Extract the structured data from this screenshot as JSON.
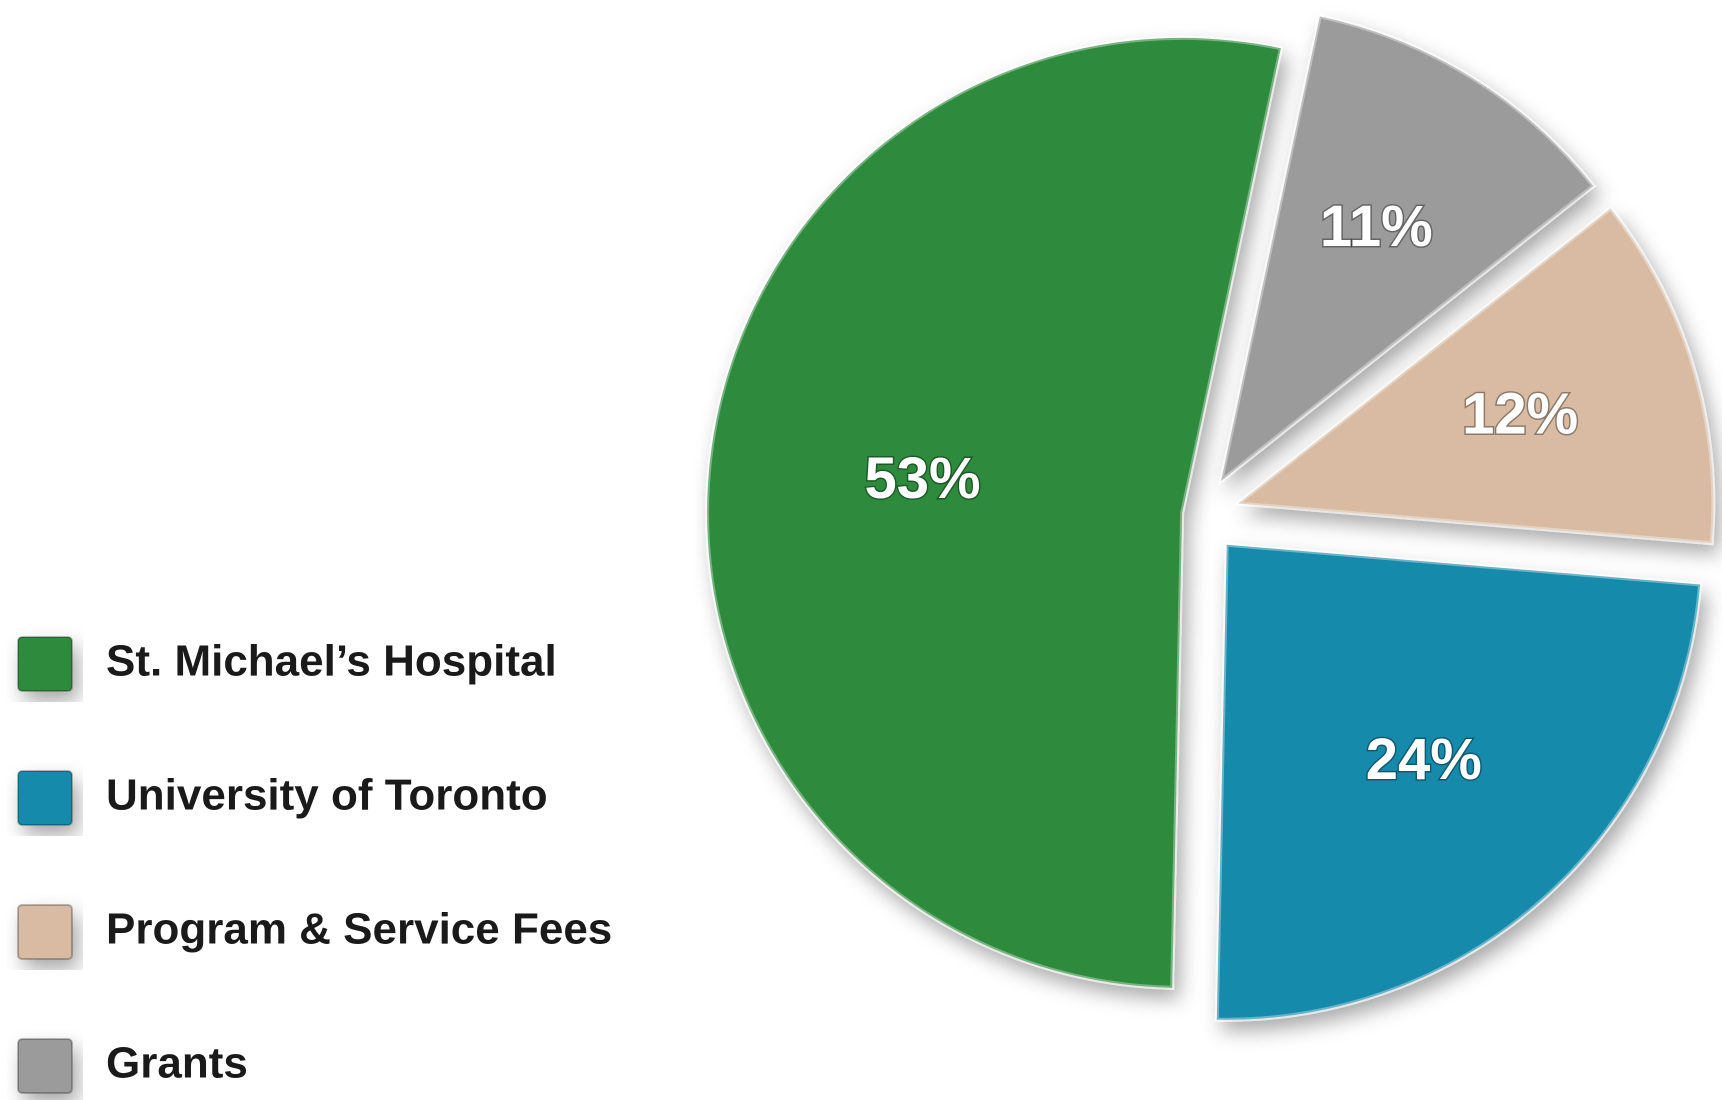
{
  "chart_data": {
    "type": "pie",
    "categories": [
      "St. Michael’s Hospital",
      "University of Toronto",
      "Program & Service Fees",
      "Grants"
    ],
    "values": [
      53,
      24,
      12,
      11
    ],
    "value_labels": [
      "53%",
      "24%",
      "12%",
      "11%"
    ],
    "colors": [
      "#2e8b3e",
      "#168aab",
      "#d8bba2",
      "#9b9b9b"
    ],
    "legend": "left"
  }
}
